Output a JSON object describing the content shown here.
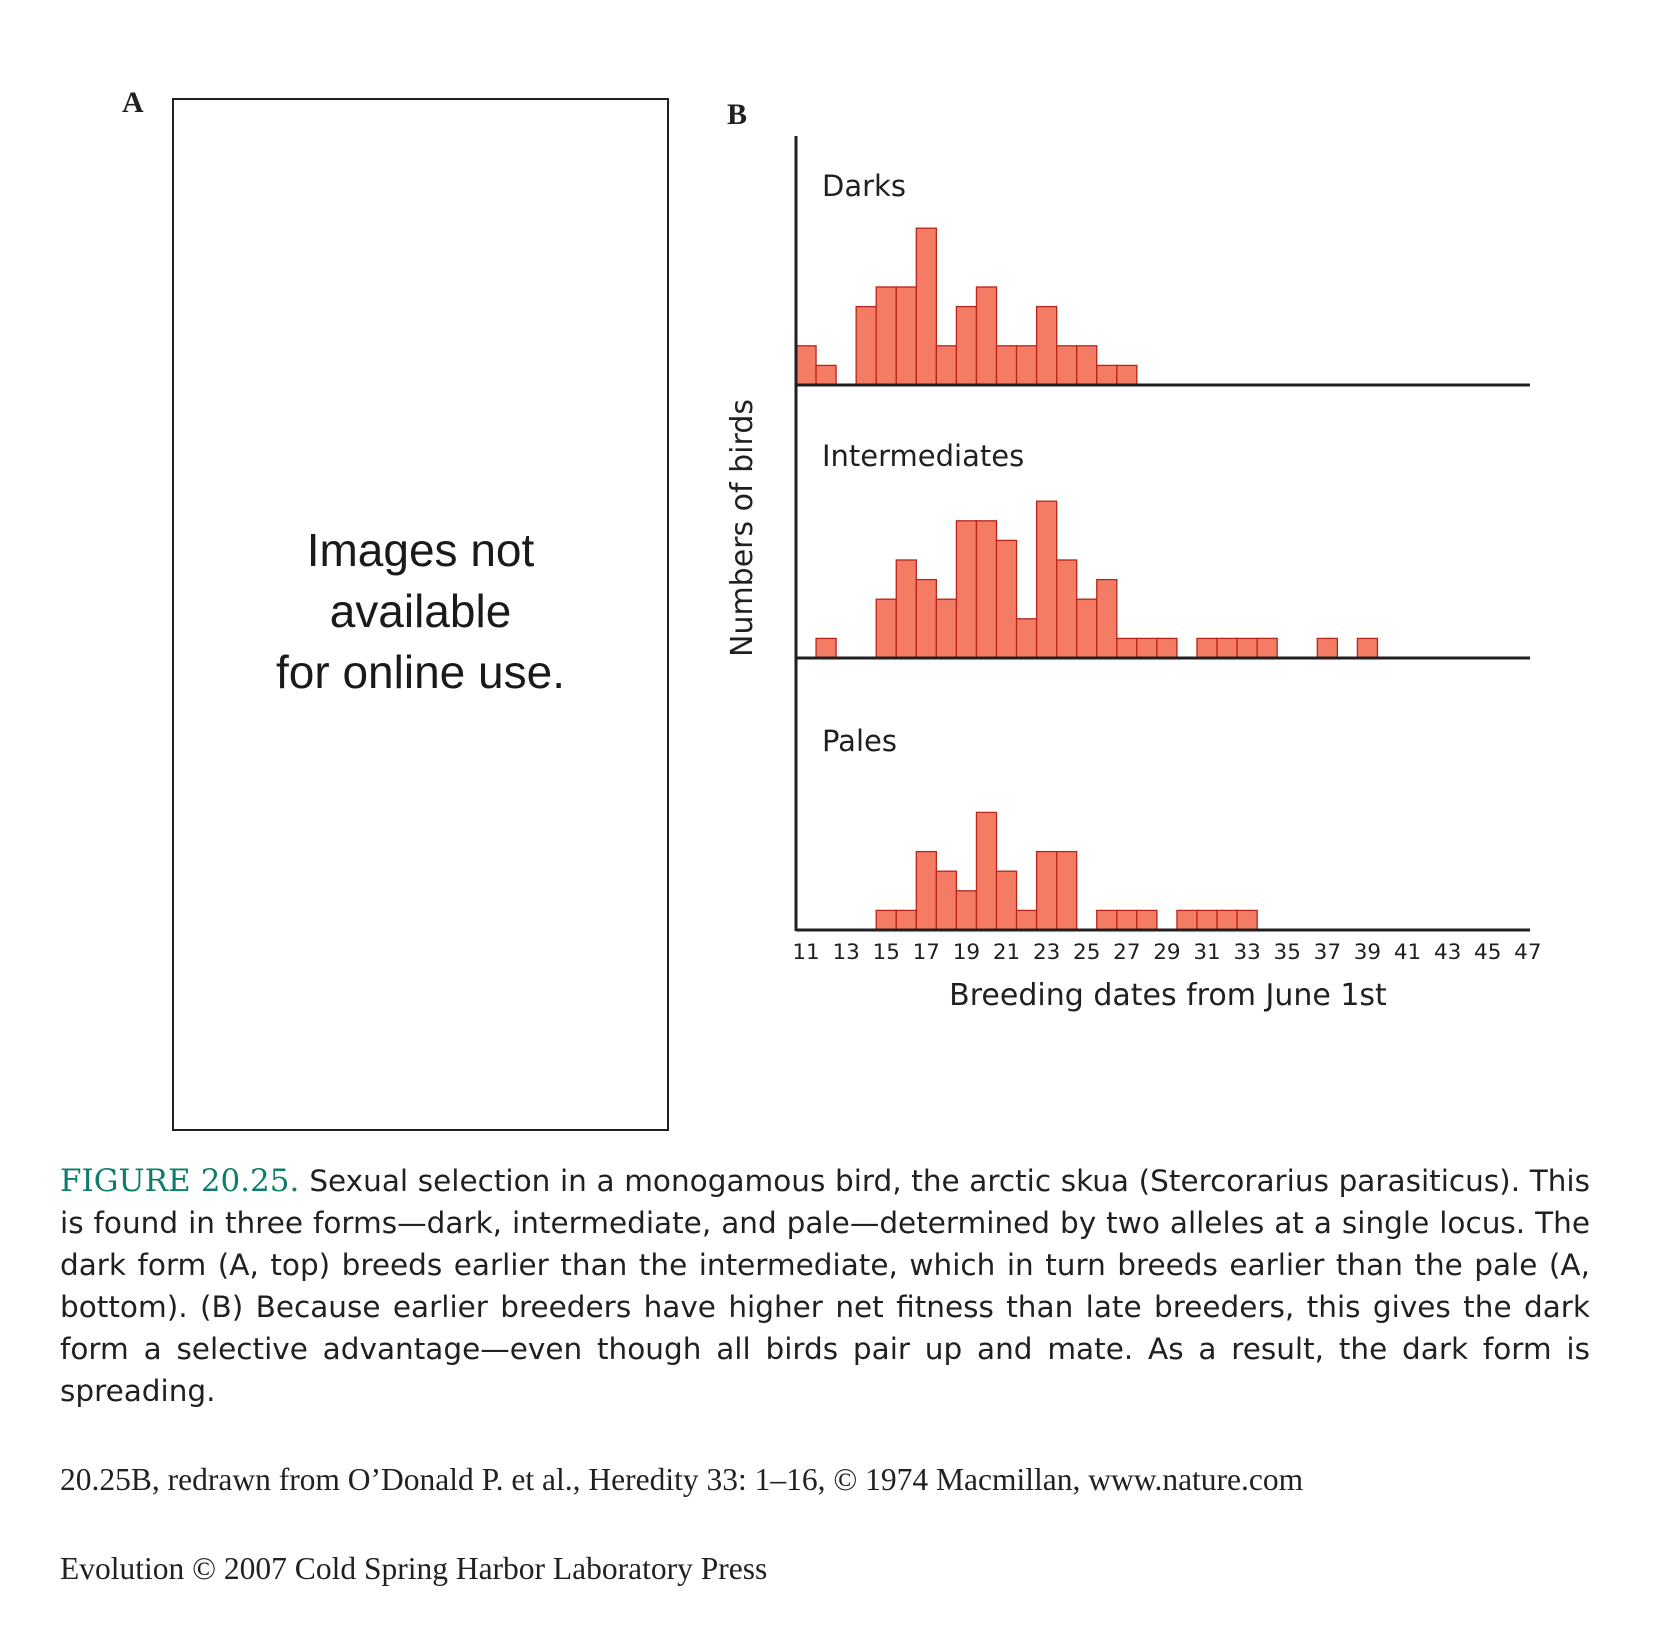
{
  "panel_a": {
    "letter": "A",
    "placeholder_lines": [
      "Images not",
      "available",
      "for online use."
    ]
  },
  "panel_b": {
    "letter": "B"
  },
  "chart_data": {
    "type": "bar",
    "subtype": "stacked-histograms",
    "ylabel": "Numbers of birds",
    "xlabel": "Breeding dates from June 1st",
    "x_ticks": [
      11,
      13,
      15,
      17,
      19,
      21,
      23,
      25,
      27,
      29,
      31,
      33,
      35,
      37,
      39,
      41,
      43,
      45,
      47
    ],
    "bin_width_days": 1,
    "xlim": [
      11,
      48
    ],
    "bar_color": "#f47c64",
    "series": [
      {
        "name": "Darks",
        "x": [
          11,
          12,
          13,
          14,
          15,
          16,
          17,
          18,
          19,
          20,
          21,
          22,
          23,
          24,
          25,
          26,
          27
        ],
        "values": [
          2,
          1,
          0,
          4,
          5,
          5,
          8,
          2,
          4,
          5,
          2,
          2,
          4,
          2,
          2,
          1,
          1
        ]
      },
      {
        "name": "Intermediates",
        "x": [
          11,
          12,
          13,
          14,
          15,
          16,
          17,
          18,
          19,
          20,
          21,
          22,
          23,
          24,
          25,
          26,
          27,
          28,
          29,
          30,
          31,
          32,
          33,
          34,
          35,
          36,
          37,
          38,
          39
        ],
        "values": [
          0,
          1,
          0,
          0,
          3,
          5,
          4,
          3,
          7,
          7,
          6,
          2,
          8,
          5,
          3,
          4,
          1,
          1,
          1,
          0,
          1,
          1,
          1,
          1,
          0,
          0,
          1,
          0,
          1
        ]
      },
      {
        "name": "Pales",
        "x": [
          11,
          12,
          13,
          14,
          15,
          16,
          17,
          18,
          19,
          20,
          21,
          22,
          23,
          24,
          25,
          26,
          27,
          28,
          29,
          30,
          31,
          32,
          33
        ],
        "values": [
          0,
          0,
          0,
          0,
          1,
          1,
          4,
          3,
          2,
          6,
          3,
          1,
          4,
          4,
          0,
          1,
          1,
          1,
          0,
          1,
          1,
          1,
          1
        ]
      }
    ]
  },
  "caption": {
    "label": "FIGURE 20.25.",
    "text": "Sexual selection in a monogamous bird, the arctic skua (Stercorarius parasiticus). This is found in three forms—dark, intermediate, and pale—determined by two alleles at a single locus. The dark form (A, top) breeds earlier than the intermediate, which in turn breeds earlier than the pale (A, bottom). (B) Because earlier breeders have higher net fitness than late breeders, this gives the dark form a selective advantage—even though all birds pair up and mate. As a result, the dark form is spreading."
  },
  "credit": "20.25B, redrawn from O’Donald P. et al., Heredity 33: 1–16, © 1974 Macmillan, www.nature.com",
  "copyright": "Evolution © 2007 Cold Spring Harbor Laboratory Press"
}
